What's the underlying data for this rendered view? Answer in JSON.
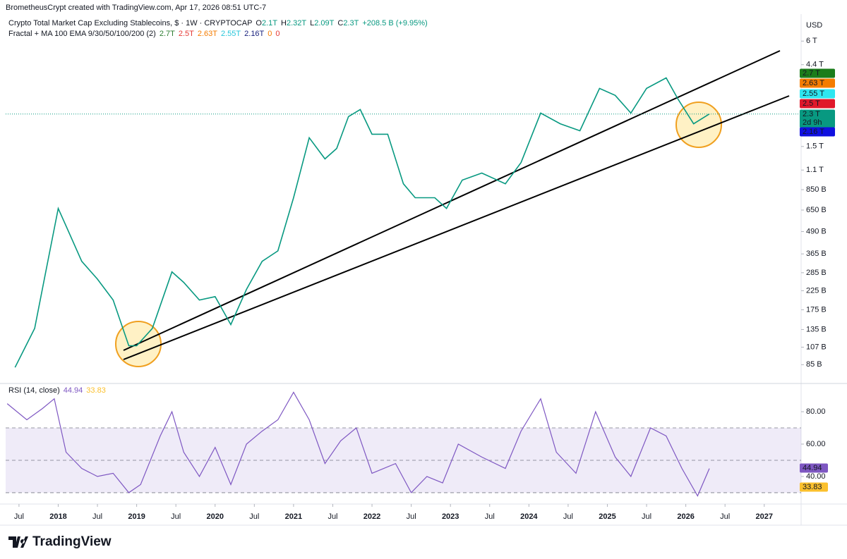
{
  "header": {
    "credit": "BrometheusCrypt created with TradingView.com, Apr 17, 2026 08:51 UTC-7"
  },
  "legend": {
    "symbol": "Crypto Total Market Cap Excluding Stablecoins, $ · 1W · CRYPTOCAP",
    "ohlc": [
      {
        "key": "O",
        "value": "2.1T"
      },
      {
        "key": "H",
        "value": "2.32T"
      },
      {
        "key": "L",
        "value": "2.09T"
      },
      {
        "key": "C",
        "value": "2.3T"
      }
    ],
    "change": "+208.5 B (+9.95%)",
    "indicator": "Fractal + MA 100 EMA 9/30/50/100/200 (2)",
    "indicator_values": [
      {
        "text": "2.7T",
        "color": "#2e7d32"
      },
      {
        "text": "2.5T",
        "color": "#e53935"
      },
      {
        "text": "2.63T",
        "color": "#f57c00"
      },
      {
        "text": "2.55T",
        "color": "#26c6da"
      },
      {
        "text": "2.16T",
        "color": "#1a237e"
      },
      {
        "text": "0",
        "color": "#f57c00"
      },
      {
        "text": "0",
        "color": "#e53935"
      }
    ]
  },
  "currency": "USD",
  "price_badges": [
    {
      "text": "2.7 T",
      "color": "#1b7d1b"
    },
    {
      "text": "2.63 T",
      "color": "#f57c00"
    },
    {
      "text": "2.55 T",
      "color": "#2ee6f0"
    },
    {
      "text": "2.5 T",
      "color": "#e0182a"
    },
    {
      "text": "2.3 T",
      "sub": "2d 9h",
      "color": "#089981"
    },
    {
      "text": "2.16 T",
      "color": "#1010e0"
    }
  ],
  "chart_data": [
    {
      "type": "line",
      "log_scale": true,
      "color": "#089981",
      "x": [
        2017.45,
        2017.7,
        2017.85,
        2018.0,
        2018.1,
        2018.3,
        2018.5,
        2018.7,
        2018.9,
        2019.0,
        2019.2,
        2019.45,
        2019.6,
        2019.8,
        2020.0,
        2020.2,
        2020.4,
        2020.6,
        2020.8,
        2021.0,
        2021.2,
        2021.4,
        2021.55,
        2021.7,
        2021.85,
        2022.0,
        2022.2,
        2022.4,
        2022.55,
        2022.8,
        2022.95,
        2023.15,
        2023.4,
        2023.7,
        2023.9,
        2024.15,
        2024.4,
        2024.65,
        2024.9,
        2025.1,
        2025.3,
        2025.5,
        2025.75,
        2025.9,
        2026.1,
        2026.3
      ],
      "values": [
        82,
        137,
        302,
        664,
        527,
        331,
        262,
        199,
        109,
        109,
        137,
        288,
        251,
        199,
        208,
        144,
        229,
        331,
        380,
        764,
        1683,
        1274,
        1462,
        2223,
        2438,
        1762,
        1762,
        918,
        764,
        764,
        664,
        964,
        1057,
        918,
        1214,
        2328,
        2022,
        1845,
        3221,
        2938,
        2328,
        3221,
        3698,
        2799,
        2022,
        2300
      ],
      "xlim": [
        2017.33,
        2027.47
      ],
      "xticks": [
        {
          "value": 2017.5,
          "label": "Jul"
        },
        {
          "value": 2018,
          "label": "2018"
        },
        {
          "value": 2018.5,
          "label": "Jul"
        },
        {
          "value": 2019,
          "label": "2019"
        },
        {
          "value": 2019.5,
          "label": "Jul"
        },
        {
          "value": 2020,
          "label": "2020"
        },
        {
          "value": 2020.5,
          "label": "Jul"
        },
        {
          "value": 2021,
          "label": "2021"
        },
        {
          "value": 2021.5,
          "label": "Jul"
        },
        {
          "value": 2022,
          "label": "2022"
        },
        {
          "value": 2022.5,
          "label": "Jul"
        },
        {
          "value": 2023,
          "label": "2023"
        },
        {
          "value": 2023.5,
          "label": "Jul"
        },
        {
          "value": 2024,
          "label": "2024"
        },
        {
          "value": 2024.5,
          "label": "Jul"
        },
        {
          "value": 2025,
          "label": "2025"
        },
        {
          "value": 2025.5,
          "label": "Jul"
        },
        {
          "value": 2026,
          "label": "2026"
        },
        {
          "value": 2026.5,
          "label": "Jul"
        },
        {
          "value": 2027,
          "label": "2027"
        }
      ],
      "ylim": [
        67,
        7800
      ],
      "yticks": [
        {
          "value": 6000,
          "label": "6 T"
        },
        {
          "value": 4400,
          "label": "4.4 T"
        },
        {
          "value": 1500,
          "label": "1.5 T"
        },
        {
          "value": 1100,
          "label": "1.1 T"
        },
        {
          "value": 850,
          "label": "850 B"
        },
        {
          "value": 650,
          "label": "650 B"
        },
        {
          "value": 490,
          "label": "490 B"
        },
        {
          "value": 365,
          "label": "365 B"
        },
        {
          "value": 285,
          "label": "285 B"
        },
        {
          "value": 225,
          "label": "225 B"
        },
        {
          "value": 175,
          "label": "175 B"
        },
        {
          "value": 135,
          "label": "135 B"
        },
        {
          "value": 107,
          "label": "107 B"
        },
        {
          "value": 85,
          "label": "85 B"
        }
      ]
    },
    {
      "type": "line",
      "title": "RSI (14, close)",
      "legend_values": [
        {
          "text": "44.94",
          "color": "#7e57c2"
        },
        {
          "text": "33.83",
          "color": "#fbc02d"
        }
      ],
      "color": "#7e57c2",
      "x": [
        2017.35,
        2017.6,
        2017.8,
        2017.95,
        2018.1,
        2018.3,
        2018.5,
        2018.7,
        2018.9,
        2019.05,
        2019.3,
        2019.45,
        2019.6,
        2019.8,
        2020.0,
        2020.2,
        2020.4,
        2020.6,
        2020.8,
        2021.0,
        2021.2,
        2021.4,
        2021.6,
        2021.8,
        2022.0,
        2022.3,
        2022.5,
        2022.7,
        2022.9,
        2023.1,
        2023.4,
        2023.7,
        2023.9,
        2024.15,
        2024.35,
        2024.6,
        2024.85,
        2025.1,
        2025.3,
        2025.55,
        2025.75,
        2025.95,
        2026.15,
        2026.3
      ],
      "values": [
        85,
        75,
        82,
        88,
        55,
        45,
        40,
        42,
        30,
        35,
        65,
        80,
        55,
        40,
        58,
        35,
        60,
        68,
        75,
        92,
        75,
        48,
        62,
        70,
        42,
        48,
        30,
        40,
        36,
        60,
        52,
        45,
        68,
        88,
        55,
        42,
        80,
        52,
        40,
        70,
        65,
        45,
        28,
        44.94
      ],
      "ylim": [
        23,
        97
      ],
      "yticks": [
        {
          "value": 80,
          "label": "80.00"
        },
        {
          "value": 60,
          "label": "60.00"
        },
        {
          "value": 40,
          "label": "40.00"
        }
      ],
      "levels": [
        70,
        50,
        30
      ]
    }
  ],
  "logo": "TradingView"
}
